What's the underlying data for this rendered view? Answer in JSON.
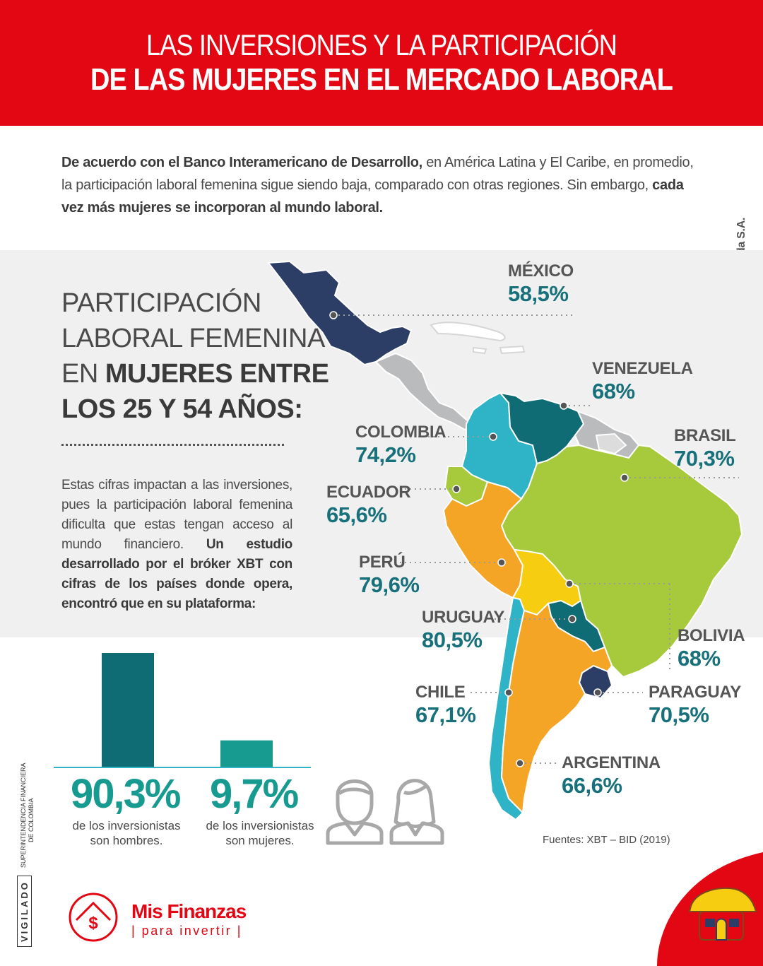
{
  "header": {
    "line1": "LAS INVERSIONES Y LA PARTICIPACIÓN",
    "line2": "DE LAS MUJERES EN EL MERCADO LABORAL"
  },
  "intro": {
    "bold1": "De acuerdo con el Banco Interamericano de Desarrollo,",
    "text1": " en América Latina y El Caribe, en promedio, la participación laboral femenina sigue siendo baja, comparado con otras regiones. Sin embargo, ",
    "bold2": "cada vez más mujeres se incorporan al mundo laboral."
  },
  "side_brand": "Banco Davivienda S.A.",
  "participation_title": {
    "line1": "PARTICIPACIÓN",
    "line2": "LABORAL FEMENINA",
    "line3_pre": "EN ",
    "line3_bold": "MUJERES ENTRE",
    "line4_bold": "LOS 25 Y 54 AÑOS:"
  },
  "body_text": {
    "text": "Estas cifras impactan a las inversiones, pues la participación laboral femenina dificulta que estas tengan acceso al mundo financiero. ",
    "bold": "Un estudio desarrollado por el bróker XBT con cifras de los países donde opera, encontró que en su plataforma:"
  },
  "countries": [
    {
      "name": "MÉXICO",
      "value": "58,5%"
    },
    {
      "name": "VENEZUELA",
      "value": "68%"
    },
    {
      "name": "COLOMBIA",
      "value": "74,2%"
    },
    {
      "name": "BRASIL",
      "value": "70,3%"
    },
    {
      "name": "ECUADOR",
      "value": "65,6%"
    },
    {
      "name": "PERÚ",
      "value": "79,6%"
    },
    {
      "name": "URUGUAY",
      "value": "80,5%"
    },
    {
      "name": "BOLIVIA",
      "value": "68%"
    },
    {
      "name": "CHILE",
      "value": "67,1%"
    },
    {
      "name": "PARAGUAY",
      "value": "70,5%"
    },
    {
      "name": "ARGENTINA",
      "value": "66,6%"
    }
  ],
  "investors": {
    "men": {
      "value": 90.3,
      "label": "90,3%",
      "caption1": "de los inversionistas",
      "caption2": "son hombres."
    },
    "women": {
      "value": 9.7,
      "label": "9,7%",
      "caption1": "de los inversionistas",
      "caption2": "son mujeres."
    }
  },
  "source": "Fuentes: XBT – BID (2019)",
  "vigilado": "VIGILADO",
  "superfinanciera": {
    "line1": "SUPERINTENDENCIA FINANCIERA",
    "line2": "DE COLOMBIA"
  },
  "logo": {
    "title": "Mis Finanzas",
    "subtitle": "| para invertir |",
    "symbol": "$"
  },
  "colors": {
    "brand_red": "#e30613",
    "teal_dark": "#0f6c75",
    "teal": "#179a8f",
    "navy": "#2d3e66",
    "cyan": "#2fb3c7",
    "orange": "#f4a525",
    "lime": "#a7c93c",
    "yellow": "#f6cd10",
    "gray_land": "#b9bbbd"
  }
}
